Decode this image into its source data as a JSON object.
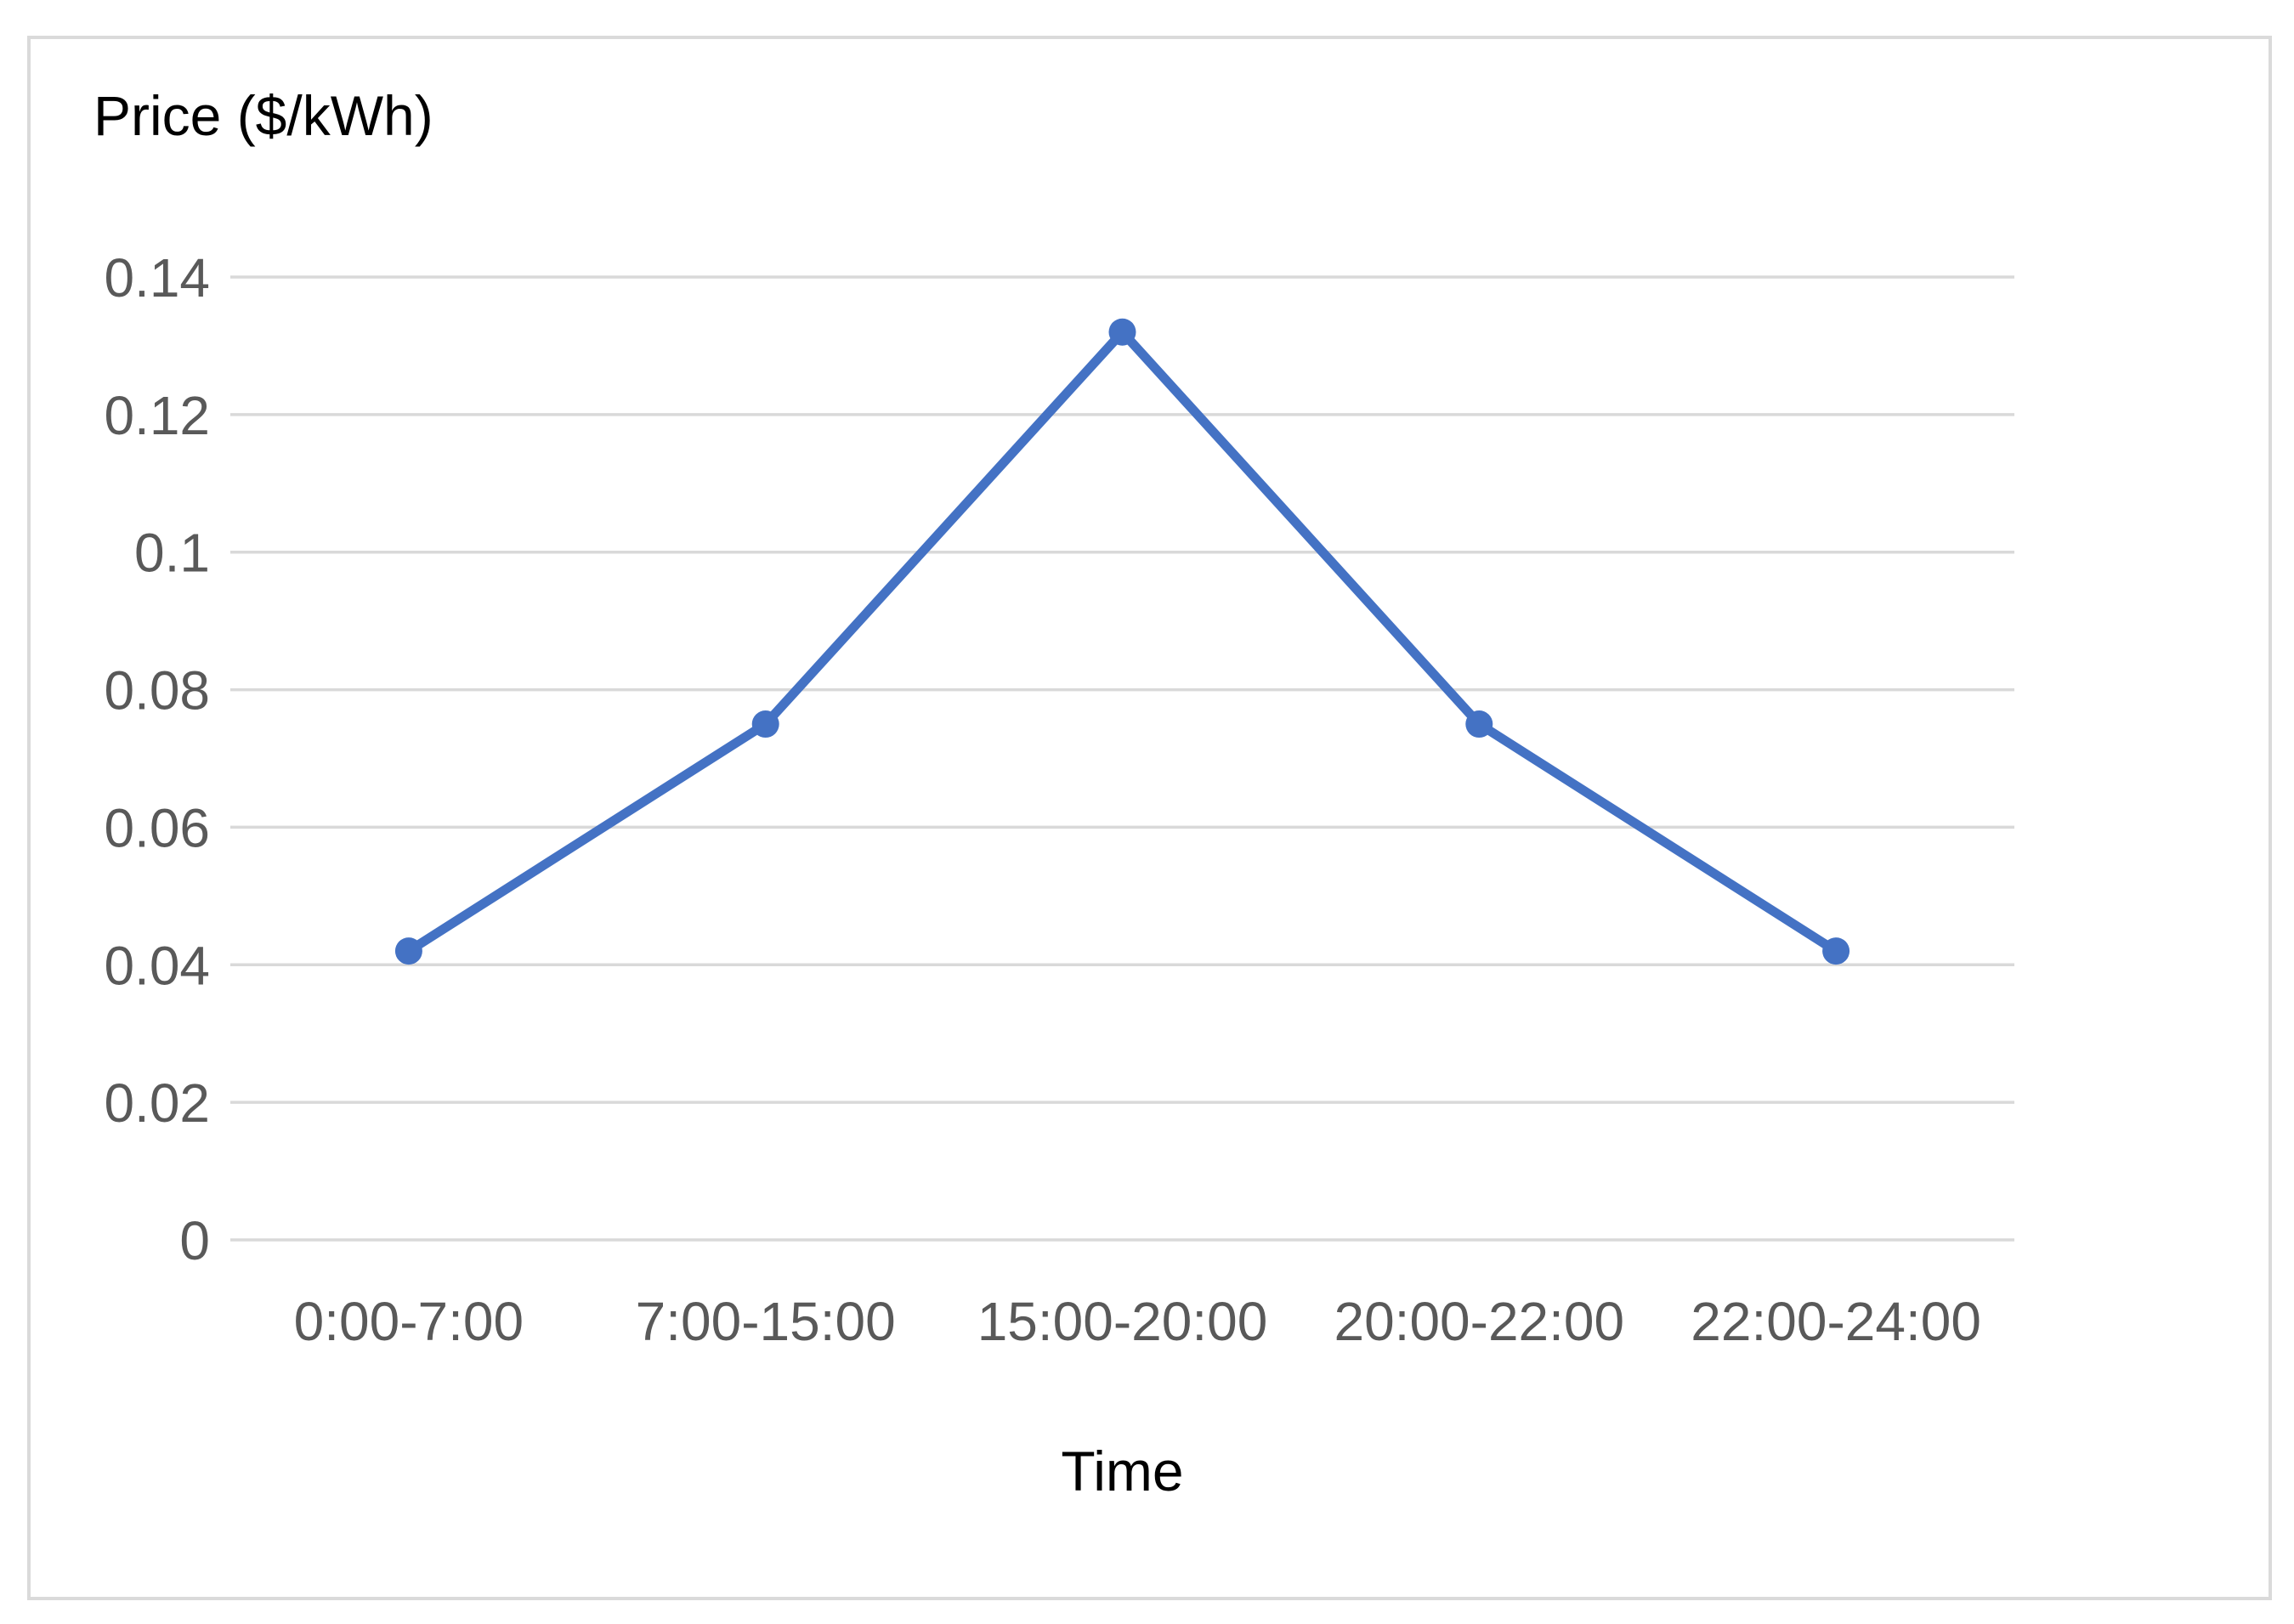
{
  "chart_data": {
    "type": "line",
    "title": "Price ($/kWh)",
    "xlabel": "Time",
    "ylabel": "Price ($/kWh)",
    "categories": [
      "0:00-7:00",
      "7:00-15:00",
      "15:00-20:00",
      "20:00-22:00",
      "22:00-24:00"
    ],
    "series": [
      {
        "name": "Price",
        "values": [
          0.042,
          0.075,
          0.132,
          0.075,
          0.042
        ]
      }
    ],
    "ylim": [
      0,
      0.14
    ],
    "ytick_step": 0.02,
    "ytick_labels": [
      "0",
      "0.02",
      "0.04",
      "0.06",
      "0.08",
      "0.1",
      "0.12",
      "0.14"
    ],
    "grid": true,
    "legend_position": "none",
    "colors": {
      "line": "#4472C4",
      "marker": "#4472C4",
      "gridline": "#D9D9D9",
      "axis_line": "#D9D9D9",
      "tick_label": "#595959",
      "title_text": "#000000",
      "frame_border": "#DADADA",
      "background": "#FFFFFF"
    }
  }
}
